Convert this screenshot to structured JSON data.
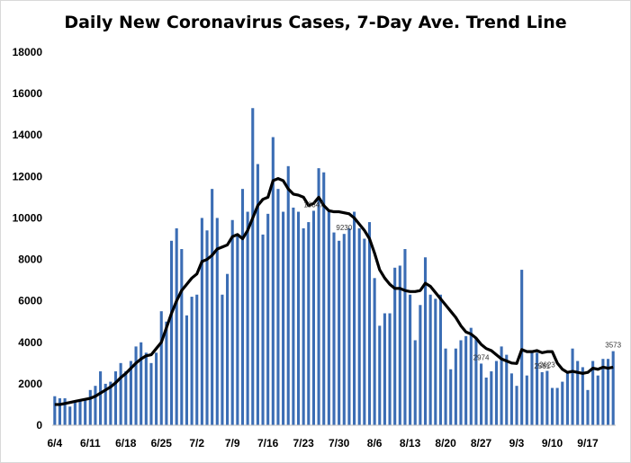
{
  "chart_data": {
    "type": "bar",
    "title": "Daily New Coronavirus Cases, 7-Day Ave. Trend Line",
    "xlabel": "",
    "ylabel": "",
    "ylim": [
      0,
      18000
    ],
    "yticks": [
      0,
      2000,
      4000,
      6000,
      8000,
      10000,
      12000,
      14000,
      16000,
      18000
    ],
    "xtick_labels": [
      "6/4",
      "6/11",
      "6/18",
      "6/25",
      "7/2",
      "7/9",
      "7/16",
      "7/23",
      "7/30",
      "8/6",
      "8/13",
      "8/20",
      "8/27",
      "9/3",
      "9/10",
      "9/17"
    ],
    "grid": false,
    "legend": "none",
    "colors": {
      "bars": "#3b6db4",
      "trend_line": "#000000"
    },
    "start_date": "6/4",
    "series": [
      {
        "type": "bar",
        "values": [
          1400,
          1300,
          1300,
          900,
          1100,
          1200,
          1300,
          1700,
          1900,
          2600,
          2000,
          2100,
          2600,
          3000,
          2600,
          3100,
          3800,
          4000,
          3500,
          3000,
          3500,
          5500,
          5000,
          8900,
          9500,
          8500,
          5300,
          6200,
          6300,
          10000,
          9400,
          11400,
          10000,
          6300,
          7300,
          9900,
          9200,
          11400,
          10300,
          15300,
          12600,
          9200,
          10200,
          13900,
          11400,
          10300,
          12500,
          10500,
          10300,
          9500,
          9800,
          10347,
          12400,
          12200,
          10400,
          9300,
          8900,
          9230,
          9500,
          10300,
          9500,
          9000,
          9800,
          7100,
          4800,
          5400,
          5400,
          7600,
          7700,
          8500,
          6300,
          4100,
          5800,
          8100,
          6300,
          6100,
          6300,
          3700,
          2700,
          3700,
          4100,
          4300,
          4700,
          4200,
          2974,
          2300,
          2600,
          3100,
          3800,
          3400,
          2500,
          1900,
          7500,
          2400,
          3500,
          3500,
          2561,
          2623,
          1800,
          1800,
          2100,
          2500,
          3700,
          3100,
          2800,
          1700,
          3100,
          2400,
          3200,
          3200,
          3573
        ]
      },
      {
        "type": "line",
        "values": [
          1000,
          1000,
          1050,
          1100,
          1150,
          1200,
          1250,
          1300,
          1400,
          1550,
          1700,
          1850,
          2050,
          2300,
          2500,
          2750,
          3000,
          3200,
          3350,
          3400,
          3700,
          4000,
          4700,
          5400,
          6000,
          6500,
          6800,
          7100,
          7300,
          7900,
          8000,
          8200,
          8500,
          8600,
          8700,
          9100,
          9200,
          9000,
          9400,
          10000,
          10600,
          10900,
          11000,
          11800,
          11900,
          11800,
          11400,
          11150,
          11100,
          11000,
          10600,
          10700,
          11000,
          10600,
          10350,
          10300,
          10300,
          10250,
          10200,
          10000,
          9700,
          9400,
          9000,
          8300,
          7500,
          7100,
          6800,
          6600,
          6600,
          6500,
          6450,
          6450,
          6500,
          6850,
          6700,
          6400,
          6100,
          5800,
          5500,
          5200,
          4800,
          4500,
          4400,
          4200,
          3900,
          3700,
          3600,
          3400,
          3200,
          3100,
          3000,
          2980,
          3650,
          3550,
          3550,
          3600,
          3500,
          3550,
          3550,
          3000,
          2700,
          2550,
          2600,
          2550,
          2500,
          2550,
          2750,
          2700,
          2800,
          2750,
          2800
        ]
      }
    ],
    "data_labels": [
      {
        "text": "10347"
      },
      {
        "text": "9230"
      },
      {
        "text": "2974"
      },
      {
        "text": "2561"
      },
      {
        "text": "2623"
      },
      {
        "text": "3573"
      }
    ]
  }
}
